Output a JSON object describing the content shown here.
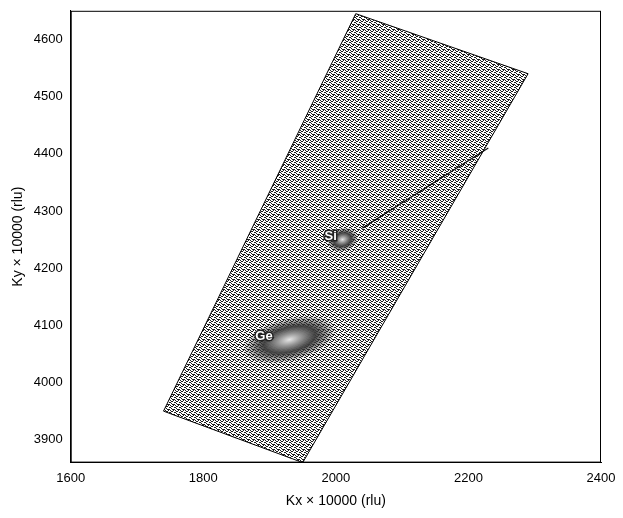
{
  "chart_data": {
    "type": "scatter",
    "xlabel": "Kx × 10000 (rlu)",
    "ylabel": "Ky × 10000 (rlu)",
    "xlim": [
      1600,
      2400
    ],
    "xticks": [
      1600,
      1800,
      2000,
      2200,
      2400
    ],
    "ylim": [
      3860,
      4650
    ],
    "yticks": [
      3900,
      4000,
      4100,
      4200,
      4300,
      4400,
      4500,
      4600
    ],
    "grid": false,
    "scan_region": {
      "x": [
        1740,
        1950,
        2290,
        2030
      ],
      "y": [
        3950,
        3860,
        4540,
        4645
      ]
    },
    "peaks": {
      "labels": [
        "Si",
        "Ge"
      ],
      "x": [
        2010,
        1930
      ],
      "y": [
        4250,
        4075
      ]
    },
    "streak": {
      "x": [
        2040,
        2230
      ],
      "y": [
        4270,
        4410
      ]
    }
  }
}
